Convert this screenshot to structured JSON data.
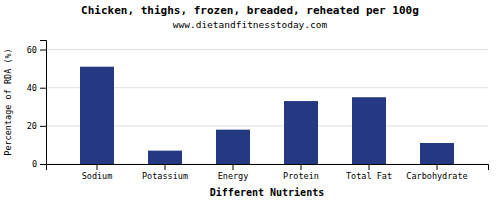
{
  "chart_data": {
    "type": "bar",
    "title": "Chicken, thighs, frozen, breaded, reheated per 100g",
    "subtitle": "www.dietandfitnesstoday.com",
    "xlabel": "Different Nutrients",
    "ylabel": "Percentage of RDA (%)",
    "categories": [
      "Sodium",
      "Potassium",
      "Energy",
      "Protein",
      "Total Fat",
      "Carbohydrate"
    ],
    "values": [
      51,
      7,
      18,
      33,
      35,
      11
    ],
    "color": "#253882",
    "ylim": [
      0,
      65
    ],
    "yticks": [
      0,
      20,
      40,
      60
    ],
    "grid": true
  }
}
